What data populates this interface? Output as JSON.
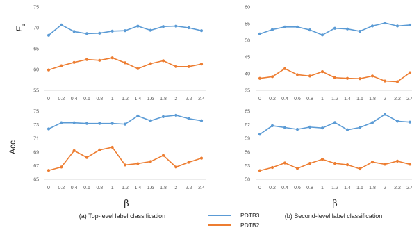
{
  "ylabels": {
    "top_main": "F",
    "top_sub": "1",
    "bottom": "Acc"
  },
  "xlabels": {
    "left": "β",
    "right": "β"
  },
  "captions": {
    "left": "(a) Top-level label classification",
    "right": "(b) Second-level label classification"
  },
  "legend": {
    "series": [
      {
        "name": "PDTB3",
        "color": "#5b9bd5"
      },
      {
        "name": "PDTB2",
        "color": "#ed7d31"
      }
    ]
  },
  "chart_data": [
    {
      "type": "line",
      "panel": "top-left",
      "x": [
        "0",
        "0.2",
        "0.4",
        "0.6",
        "0.8",
        "1",
        "1.2",
        "1.4",
        "1.6",
        "1.8",
        "2",
        "2.2",
        "2.4"
      ],
      "ylim": [
        55,
        75
      ],
      "yticks": [
        55,
        60,
        65,
        70,
        75
      ],
      "grid": false,
      "series": [
        {
          "name": "PDTB3",
          "color": "#5b9bd5",
          "values": [
            68.2,
            70.7,
            69.1,
            68.6,
            68.7,
            69.2,
            69.3,
            70.4,
            69.4,
            70.3,
            70.4,
            70.0,
            69.3
          ]
        },
        {
          "name": "PDTB2",
          "color": "#ed7d31",
          "values": [
            59.9,
            60.9,
            61.7,
            62.4,
            62.2,
            62.8,
            61.6,
            60.2,
            61.4,
            62.1,
            60.7,
            60.7,
            61.3
          ]
        }
      ]
    },
    {
      "type": "line",
      "panel": "top-right",
      "x": [
        "0",
        "0.2",
        "0.4",
        "0.6",
        "0.8",
        "1",
        "1.2",
        "1.4",
        "1.6",
        "1.8",
        "2",
        "2.2",
        "2.4"
      ],
      "ylim": [
        35,
        60
      ],
      "yticks": [
        35,
        40,
        45,
        50,
        55,
        60
      ],
      "grid": false,
      "series": [
        {
          "name": "PDTB3",
          "color": "#5b9bd5",
          "values": [
            51.9,
            53.2,
            54.0,
            54.0,
            53.1,
            51.6,
            53.6,
            53.4,
            52.7,
            54.3,
            55.2,
            54.3,
            54.6
          ]
        },
        {
          "name": "PDTB2",
          "color": "#ed7d31",
          "values": [
            38.6,
            39.1,
            41.5,
            39.7,
            39.3,
            40.6,
            38.8,
            38.6,
            38.5,
            39.3,
            37.8,
            37.6,
            40.3
          ]
        }
      ]
    },
    {
      "type": "line",
      "panel": "bottom-left",
      "x": [
        "0",
        "0.2",
        "0.4",
        "0.6",
        "0.8",
        "1",
        "1.2",
        "1.4",
        "1.6",
        "1.8",
        "2",
        "2.2",
        "2.4"
      ],
      "ylim": [
        65,
        75
      ],
      "yticks": [
        65,
        67,
        69,
        71,
        73,
        75
      ],
      "grid": false,
      "series": [
        {
          "name": "PDTB3",
          "color": "#5b9bd5",
          "values": [
            72.4,
            73.3,
            73.3,
            73.2,
            73.2,
            73.2,
            73.1,
            74.3,
            73.6,
            74.2,
            74.4,
            73.9,
            73.6
          ]
        },
        {
          "name": "PDTB2",
          "color": "#ed7d31",
          "values": [
            66.3,
            66.8,
            69.2,
            68.2,
            69.3,
            69.7,
            67.1,
            67.3,
            67.6,
            68.5,
            66.8,
            67.5,
            68.1
          ]
        }
      ]
    },
    {
      "type": "line",
      "panel": "bottom-right",
      "x": [
        "0",
        "0.2",
        "0.4",
        "0.6",
        "0.8",
        "1",
        "1.2",
        "1.4",
        "1.6",
        "1.8",
        "2",
        "2.2",
        "2.4"
      ],
      "ylim": [
        50,
        65
      ],
      "yticks": [
        50,
        53,
        56,
        59,
        62,
        65
      ],
      "grid": false,
      "series": [
        {
          "name": "PDTB3",
          "color": "#5b9bd5",
          "values": [
            59.9,
            61.8,
            61.4,
            61.0,
            61.5,
            61.3,
            62.5,
            60.9,
            61.4,
            62.5,
            64.3,
            62.8,
            62.6
          ]
        },
        {
          "name": "PDTB2",
          "color": "#ed7d31",
          "values": [
            51.9,
            52.6,
            53.6,
            52.4,
            53.5,
            54.4,
            53.5,
            53.2,
            52.3,
            53.8,
            53.3,
            54.0,
            53.3
          ]
        }
      ]
    }
  ]
}
